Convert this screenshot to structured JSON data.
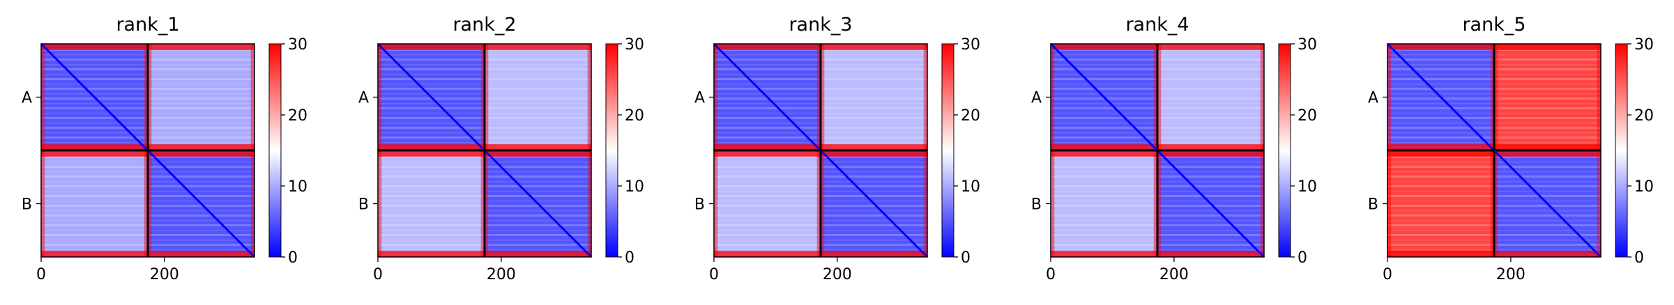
{
  "colors": {
    "low": "#0000ff",
    "mid": "#ffffff",
    "high": "#ff0000",
    "chain_divider": "#000000"
  },
  "chart_data": [
    {
      "type": "heatmap",
      "title": "rank_1",
      "colormap": "bwr",
      "color_range": [
        0,
        30
      ],
      "colorbar_ticks": [
        "0",
        "10",
        "20",
        "30"
      ],
      "x_ticks": [
        "0",
        "200"
      ],
      "xlim": [
        0,
        346
      ],
      "chain_labels": [
        "A",
        "B"
      ],
      "chain_boundary": 173,
      "intra_chain_value": 5,
      "inter_chain_value": 10,
      "terminal_value": 30
    },
    {
      "type": "heatmap",
      "title": "rank_2",
      "colormap": "bwr",
      "color_range": [
        0,
        30
      ],
      "colorbar_ticks": [
        "0",
        "10",
        "20",
        "30"
      ],
      "x_ticks": [
        "0",
        "200"
      ],
      "xlim": [
        0,
        346
      ],
      "chain_labels": [
        "A",
        "B"
      ],
      "chain_boundary": 173,
      "intra_chain_value": 5,
      "inter_chain_value": 11,
      "terminal_value": 30
    },
    {
      "type": "heatmap",
      "title": "rank_3",
      "colormap": "bwr",
      "color_range": [
        0,
        30
      ],
      "colorbar_ticks": [
        "0",
        "10",
        "20",
        "30"
      ],
      "x_ticks": [
        "0",
        "200"
      ],
      "xlim": [
        0,
        346
      ],
      "chain_labels": [
        "A",
        "B"
      ],
      "chain_boundary": 173,
      "intra_chain_value": 5,
      "inter_chain_value": 11,
      "terminal_value": 30
    },
    {
      "type": "heatmap",
      "title": "rank_4",
      "colormap": "bwr",
      "color_range": [
        0,
        30
      ],
      "colorbar_ticks": [
        "0",
        "10",
        "20",
        "30"
      ],
      "x_ticks": [
        "0",
        "200"
      ],
      "xlim": [
        0,
        346
      ],
      "chain_labels": [
        "A",
        "B"
      ],
      "chain_boundary": 173,
      "intra_chain_value": 5,
      "inter_chain_value": 11,
      "terminal_value": 30
    },
    {
      "type": "heatmap",
      "title": "rank_5",
      "colormap": "bwr",
      "color_range": [
        0,
        30
      ],
      "colorbar_ticks": [
        "0",
        "10",
        "20",
        "30"
      ],
      "x_ticks": [
        "0",
        "200"
      ],
      "xlim": [
        0,
        346
      ],
      "chain_labels": [
        "A",
        "B"
      ],
      "chain_boundary": 173,
      "intra_chain_value": 5,
      "inter_chain_value": 26,
      "terminal_value": 30
    }
  ]
}
